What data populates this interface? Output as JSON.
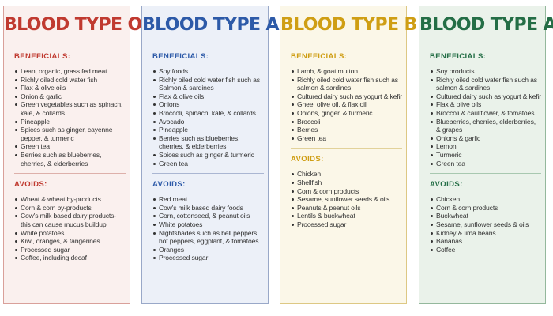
{
  "panels": [
    {
      "title": "BLOOD TYPE O",
      "beneficials_label": "BENEFICIALS:",
      "beneficials": [
        "Lean, organic, grass fed meat",
        "Richly oiled cold water fish",
        "Flax & olive oils",
        "Onion & garlic",
        "Green vegetables such as spinach, kale, & collards",
        "Pineapple",
        "Spices such as ginger, cayenne pepper, & turmeric",
        "Green tea",
        "Berries such as blueberries, cherries, & elderberries"
      ],
      "avoids_label": "AVOIDS:",
      "avoids": [
        "Wheat & wheat by-products",
        "Corn & corn by-products",
        "Cow's milk based dairy products- this can cause mucus buildup",
        "White potatoes",
        "Kiwi, oranges, & tangerines",
        "Processed sugar",
        "Coffee, including decaf"
      ]
    },
    {
      "title": "BLOOD TYPE A",
      "beneficials_label": "BENEFICIALS:",
      "beneficials": [
        "Soy foods",
        "Richly oiled cold water fish such as Salmon & sardines",
        "Flax & olive oils",
        "Onions",
        "Broccoli, spinach, kale, & collards",
        "Avocado",
        "Pineapple",
        "Berries such as blueberries, cherries, & elderberries",
        "Spices such as ginger & turmeric",
        "Green tea"
      ],
      "avoids_label": "AVOIDS:",
      "avoids": [
        "Red meat",
        "Cow's milk based dairy foods",
        "Corn, cottonseed, & peanut oils",
        "White potatoes",
        "Nightshades such as bell peppers, hot peppers, eggplant, & tomatoes",
        "Oranges",
        "Processed sugar"
      ]
    },
    {
      "title": "BLOOD TYPE B",
      "beneficials_label": "BENEFICIALS:",
      "beneficials": [
        "Lamb, & goat mutton",
        "Richly oiled cold water fish such as salmon & sardines",
        "Cultured dairy such as yogurt & kefir",
        "Ghee, olive oil, & flax oil",
        "Onions, ginger, & turmeric",
        "Broccoli",
        "Berries",
        "Green tea"
      ],
      "avoids_label": "AVOIDS:",
      "avoids": [
        "Chicken",
        "Shellfish",
        "Corn & corn products",
        "Sesame, sunflower seeds & oils",
        "Peanuts & peanut oils",
        "Lentils & buckwheat",
        "Processed sugar"
      ]
    },
    {
      "title": "BLOOD TYPE AB",
      "beneficials_label": "BENEFICIALS:",
      "beneficials": [
        "Soy products",
        "Richly oiled cold water fish such as salmon & sardines",
        "Cultured dairy such as yogurt & kefir",
        "Flax & olive oils",
        "Broccoli & cauliflower, & tomatoes",
        "Blueberries, cherries, elderberries, & grapes",
        "Onions & garlic",
        "Lemon",
        "Turmeric",
        "Green tea"
      ],
      "avoids_label": "AVOIDS:",
      "avoids": [
        "Chicken",
        "Corn & corn products",
        "Buckwheat",
        "Sesame, sunflower seeds & oils",
        "Kidney & lima beans",
        "Bananas",
        "Coffee"
      ]
    }
  ],
  "colors": {
    "type_o": "#c03a30",
    "type_a": "#2d5aa8",
    "type_b": "#cf9e14",
    "type_ab": "#246e46"
  }
}
